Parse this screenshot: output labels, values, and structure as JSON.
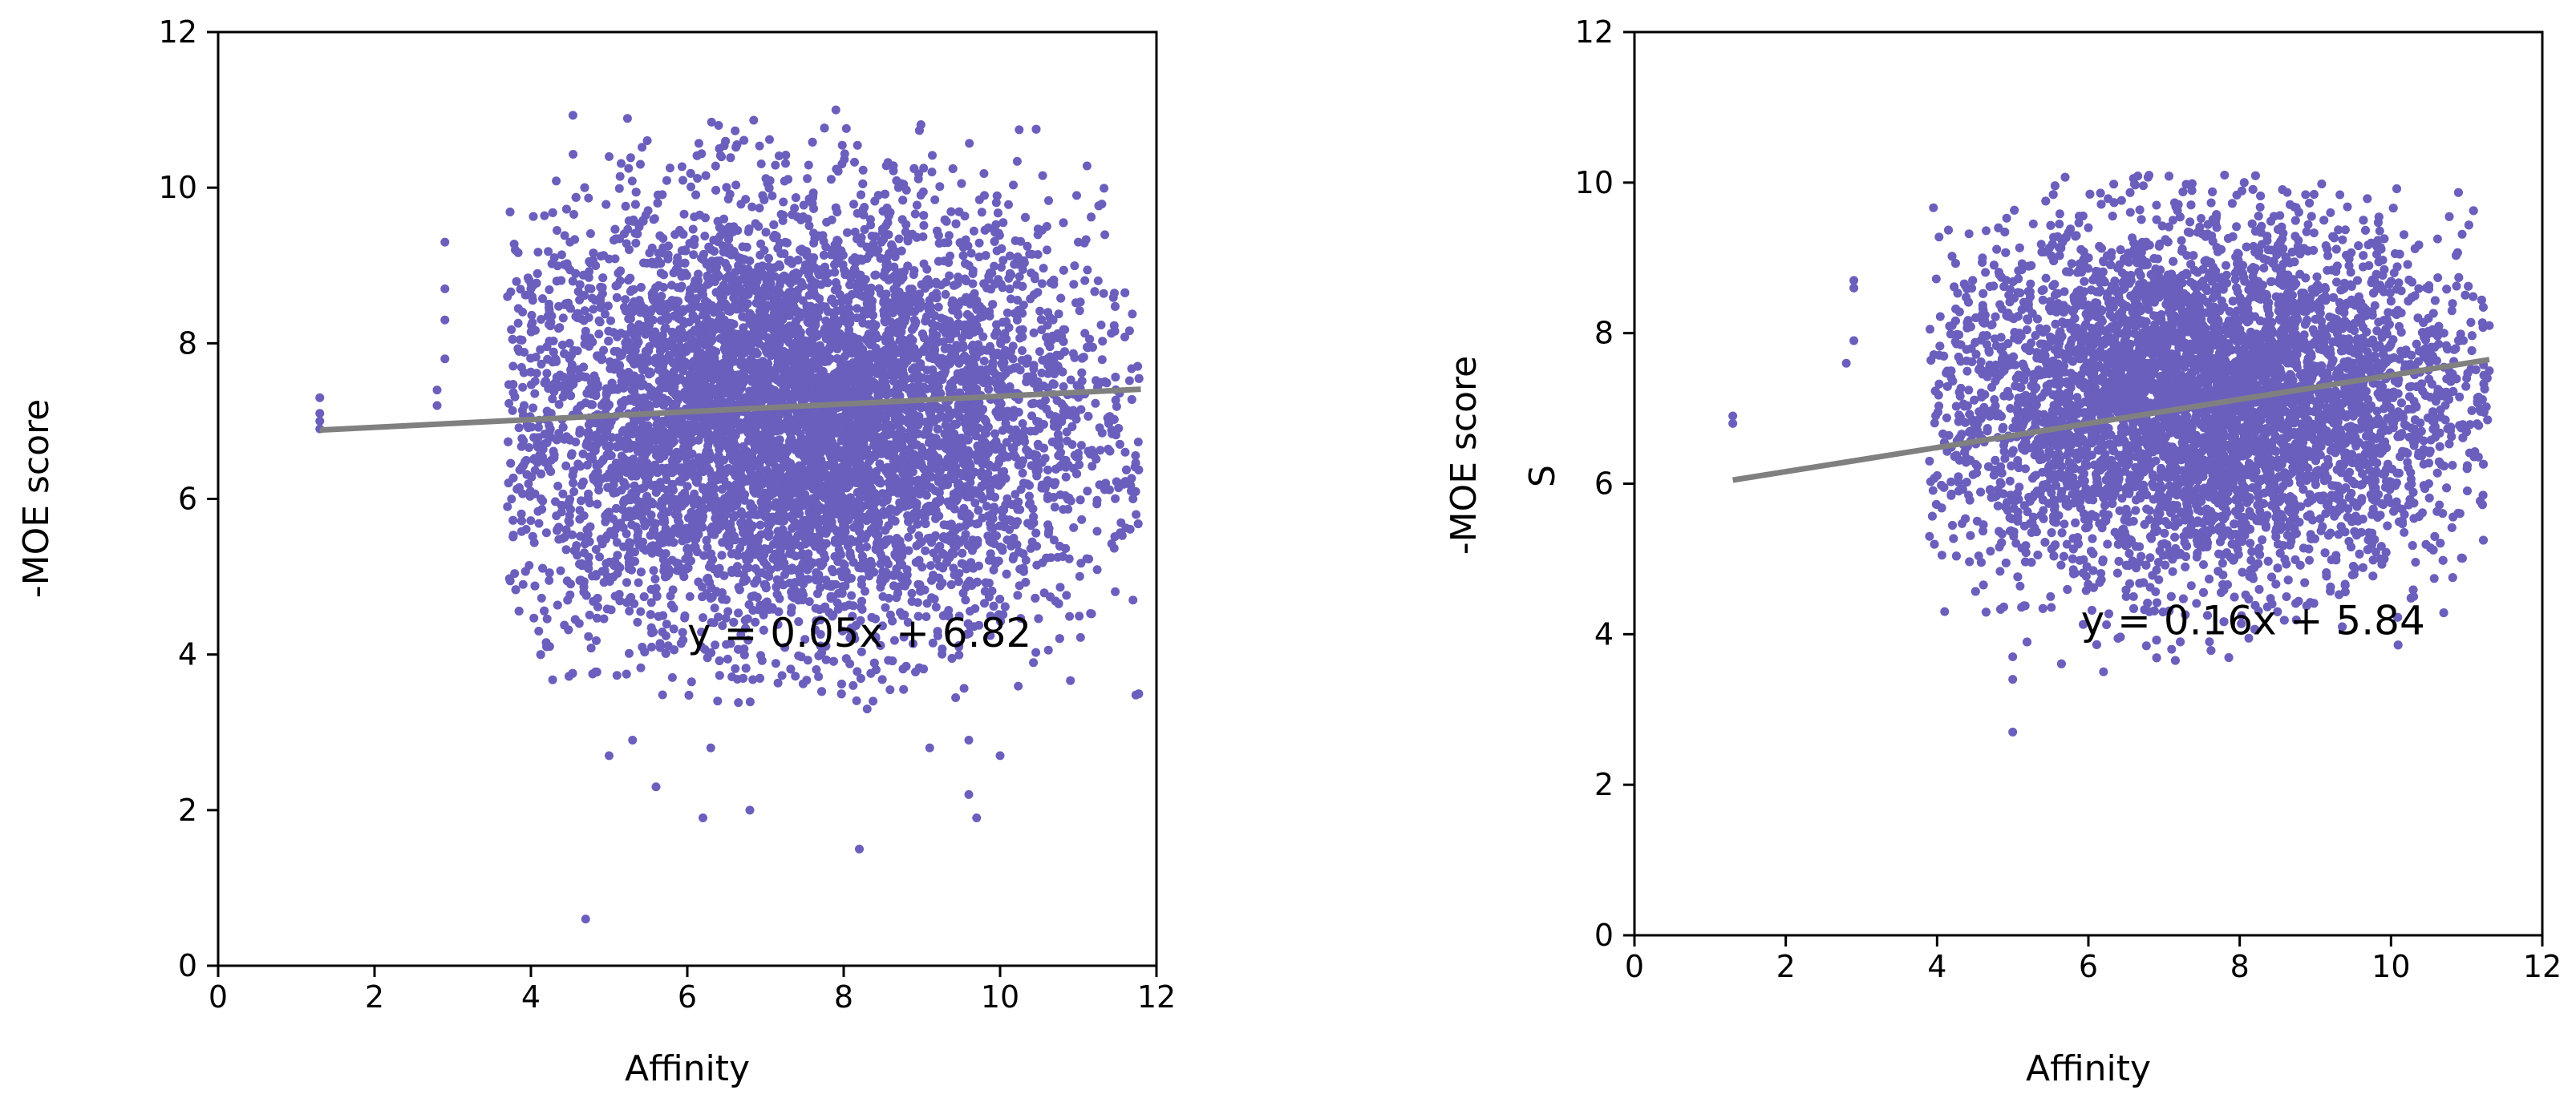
{
  "chart_data": [
    {
      "type": "scatter",
      "title": "",
      "xlabel": "Affinity",
      "ylabel": "-MOE score",
      "ylabel_extra": "",
      "xlim": [
        0,
        12
      ],
      "ylim": [
        0,
        12
      ],
      "xticks": [
        0,
        2,
        4,
        6,
        8,
        10,
        12
      ],
      "yticks": [
        0,
        2,
        4,
        6,
        8,
        10,
        12
      ],
      "grid": false,
      "point_color": "#6a5fbd",
      "line_color": "#808080",
      "regression": {
        "slope": 0.05,
        "intercept": 6.82,
        "x_range": [
          1.3,
          11.8
        ],
        "equation_label": "y = 0.05x + 6.82",
        "label_at": [
          6.0,
          4.1
        ]
      },
      "cloud": {
        "x_range": [
          3.7,
          11.8
        ],
        "y_range": [
          3.3,
          11.0
        ],
        "x_center": 7.4,
        "y_center": 7.0
      },
      "series": [
        {
          "x": [
            1.3,
            1.3,
            1.3,
            1.3,
            2.8,
            2.8,
            2.9,
            2.9,
            2.9,
            2.9,
            3.7,
            3.7,
            3.8,
            3.9,
            4.0,
            4.1,
            4.2,
            4.3,
            4.5,
            4.7,
            5.0,
            5.0,
            5.3,
            5.6,
            6.2,
            6.3,
            6.8,
            8.2,
            8.7,
            9.1,
            9.6,
            9.7,
            10.0,
            10.6,
            11.0,
            11.6,
            11.7,
            11.7,
            6.4,
            7.9,
            8.3,
            5.4,
            9.6,
            9.8
          ],
          "y": [
            6.9,
            7.0,
            7.1,
            7.3,
            7.2,
            7.4,
            7.8,
            8.3,
            8.7,
            9.3,
            5.9,
            8.6,
            9.2,
            4.9,
            8.7,
            4.3,
            4.1,
            9.1,
            9.3,
            0.6,
            2.7,
            10.4,
            2.9,
            2.3,
            1.9,
            2.8,
            2.0,
            1.5,
            10.0,
            2.8,
            2.9,
            1.9,
            2.7,
            9.2,
            9.3,
            6.6,
            4.7,
            6.0,
            10.8,
            11.0,
            3.3,
            10.3,
            2.2,
            9.9
          ]
        }
      ]
    },
    {
      "type": "scatter",
      "title": "",
      "xlabel": "Affinity",
      "ylabel": "-MOE score",
      "ylabel_extra": "S",
      "xlim": [
        0,
        12
      ],
      "ylim": [
        0,
        12
      ],
      "xticks": [
        0,
        2,
        4,
        6,
        8,
        10,
        12
      ],
      "yticks": [
        0,
        2,
        4,
        6,
        8,
        10,
        12
      ],
      "grid": false,
      "point_color": "#6a5fbd",
      "line_color": "#808080",
      "regression": {
        "slope": 0.16,
        "intercept": 5.84,
        "x_range": [
          1.3,
          11.3
        ],
        "equation_label": "y = 0.16x + 5.84",
        "label_at": [
          5.9,
          4.0
        ]
      },
      "cloud": {
        "x_range": [
          3.9,
          11.3
        ],
        "y_range": [
          3.6,
          10.1
        ],
        "x_center": 7.5,
        "y_center": 7.1
      },
      "series": [
        {
          "x": [
            1.3,
            1.3,
            2.8,
            2.9,
            2.9,
            2.9,
            3.9,
            3.9,
            4.1,
            4.2,
            4.6,
            5.0,
            5.0,
            5.0,
            5.5,
            6.0,
            6.2,
            6.5,
            6.9,
            7.1,
            7.8,
            8.5,
            9.2,
            10.3,
            10.7,
            11.3,
            11.3,
            11.0,
            10.5,
            7.6
          ],
          "y": [
            6.8,
            6.9,
            7.6,
            7.9,
            8.6,
            8.7,
            5.3,
            6.3,
            4.3,
            8.1,
            9.0,
            2.7,
            3.4,
            3.7,
            4.5,
            9.4,
            3.5,
            4.5,
            9.7,
            3.8,
            10.1,
            4.3,
            9.6,
            4.5,
            8.0,
            7.5,
            8.1,
            7.4,
            6.0,
            3.9
          ]
        }
      ]
    }
  ]
}
